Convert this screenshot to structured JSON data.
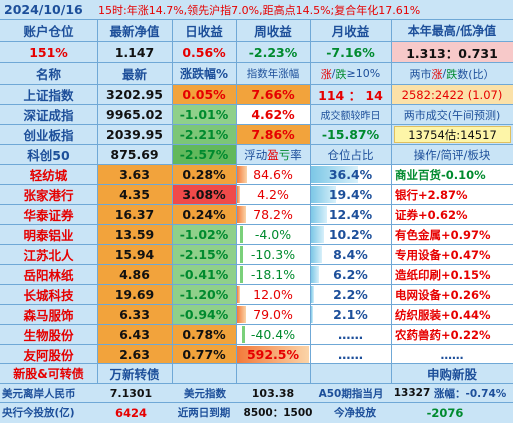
{
  "header": {
    "date": "2024/10/16",
    "info": "15时:年涨14.7%,领先沪指7.0%,距高点14.5%;复合年化17.61%"
  },
  "account": {
    "labels": [
      "账户仓位",
      "最新净值",
      "日收益",
      "周收益",
      "月收益",
      "本年最高/低净值"
    ],
    "values": [
      "151%",
      "1.147",
      "0.56%",
      "-2.23%",
      "-7.16%",
      "1.313：0.731"
    ]
  },
  "index_headers": [
    "名称",
    "最新",
    "涨跌幅%",
    "指数年涨幅"
  ],
  "limit_header": {
    "zhang": "涨",
    "slash": "/",
    "die": "跌",
    "rest": "≥10%"
  },
  "ratio_header": {
    "pre": "两市",
    "zhang": "涨",
    "slash": "/",
    "die": "跌",
    "rest": "数(比）"
  },
  "indices": [
    {
      "name": "上证指数",
      "price": "3202.95",
      "chg": "0.05%",
      "year": "7.66%"
    },
    {
      "name": "深证成指",
      "price": "9965.02",
      "chg": "-1.01%",
      "year": "4.62%"
    },
    {
      "name": "创业板指",
      "price": "2039.95",
      "chg": "-2.21%",
      "year": "7.86%"
    },
    {
      "name": "科创50",
      "price": "875.69",
      "chg": "-2.57%"
    }
  ],
  "limit_counts": "114 ： 14",
  "turnover_label": "成交额较昨日",
  "cyb_year": "-15.87%",
  "market_ratio": "2582:2422 (1.07)",
  "forecast_label": "两市成交(午间预测)",
  "forecast_value": "13754估:14517",
  "holding_headers": {
    "pl_pre": "浮动",
    "pl_ying": "盈",
    "pl_kui": "亏",
    "pl_post": "率",
    "position": "仓位占比",
    "op": "操作/简评/板块"
  },
  "holdings": [
    {
      "name": "轻纺城",
      "price": "3.63",
      "chg": "0.28%",
      "pl": "84.6%",
      "pos": "36.4%",
      "sector": "商业百货-0.10%",
      "plFill": 0.14,
      "posFill": 0.6
    },
    {
      "name": "张家港行",
      "price": "4.35",
      "chg": "3.08%",
      "pl": "4.2%",
      "pos": "19.4%",
      "sector": "银行+2.87%",
      "plFill": 0.01,
      "posFill": 0.32
    },
    {
      "name": "华泰证券",
      "price": "16.37",
      "chg": "0.24%",
      "pl": "78.2%",
      "pos": "12.4%",
      "sector": "证券+0.62%",
      "plFill": 0.13,
      "posFill": 0.2
    },
    {
      "name": "明泰铝业",
      "price": "13.59",
      "chg": "-1.02%",
      "pl": "-4.0%",
      "pos": "10.2%",
      "sector": "有色金属+0.97%",
      "plFill": 0.01,
      "posFill": 0.17
    },
    {
      "name": "江苏北人",
      "price": "15.94",
      "chg": "-2.15%",
      "pl": "-10.3%",
      "pos": "8.4%",
      "sector": "专用设备+0.47%",
      "plFill": 0.02,
      "posFill": 0.14
    },
    {
      "name": "岳阳林纸",
      "price": "4.86",
      "chg": "-0.41%",
      "pl": "-18.1%",
      "pos": "6.2%",
      "sector": "造纸印刷+0.15%",
      "plFill": 0.03,
      "posFill": 0.1
    },
    {
      "name": "长城科技",
      "price": "19.69",
      "chg": "-1.20%",
      "pl": "12.0%",
      "pos": "2.2%",
      "sector": "电网设备+0.26%",
      "plFill": 0.02,
      "posFill": 0.04
    },
    {
      "name": "森马服饰",
      "price": "6.33",
      "chg": "-0.94%",
      "pl": "79.0%",
      "pos": "2.1%",
      "sector": "纺织服装+0.44%",
      "plFill": 0.13,
      "posFill": 0.03
    },
    {
      "name": "生物股份",
      "price": "6.43",
      "chg": "0.78%",
      "pl": "-40.4%",
      "pos": "……",
      "sector": "农药兽药+0.22%",
      "plFill": 0.07,
      "posFill": 0
    },
    {
      "name": "友阿股份",
      "price": "2.63",
      "chg": "0.77%",
      "pl": "592.5%",
      "pos": "……",
      "sector": "……",
      "plFill": 1.0,
      "posFill": 0
    }
  ],
  "ipo_row": {
    "label": "新股&可转债",
    "value": "万新转债",
    "right": "申购新股"
  },
  "footer1": {
    "l1": "美元离岸人民币",
    "v1": "7.1301",
    "l2": "美元指数",
    "v2": "103.38",
    "l3": "A50期指当月",
    "v3": "13327",
    "l4": "涨幅：-0.74%"
  },
  "footer2": {
    "l1": "央行今投放(亿)",
    "v1": "6424",
    "l2": "近两日到期",
    "v2": "8500：1500",
    "l3": "今净投放",
    "v3": "-2076"
  },
  "colors": {
    "bg": "#c9e4f6",
    "line": "#6fa8d6",
    "title": "#1d4f9a",
    "red": "#e60000",
    "green": "#008a2e",
    "orange": "#f2a33c",
    "red_cell": "#f04a4a",
    "green_cell": "#62b85c"
  }
}
